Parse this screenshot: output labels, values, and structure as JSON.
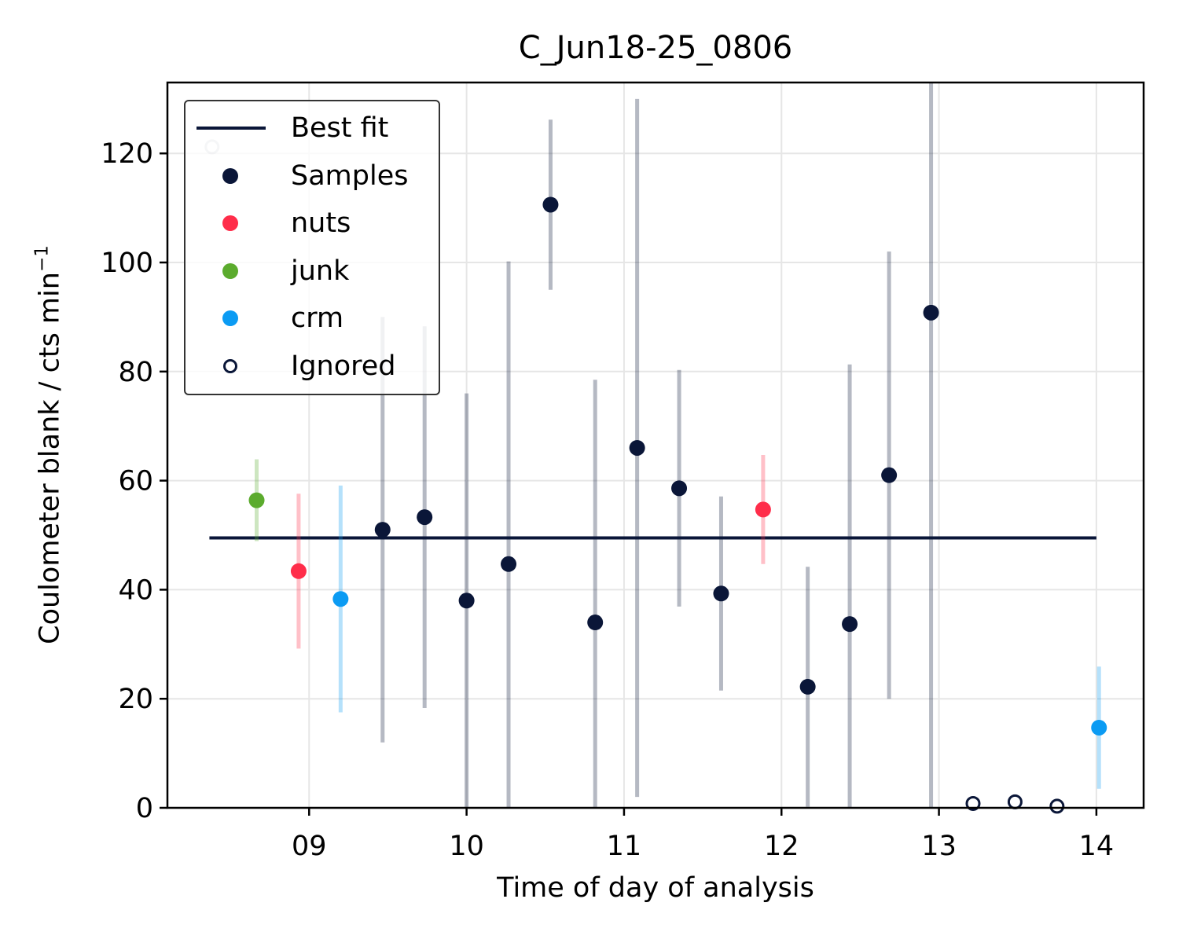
{
  "chart_data": {
    "type": "scatter",
    "title": "C_Jun18-25_0806",
    "xlabel": "Time of day of analysis",
    "ylabel": "Coulometer blank / cts min",
    "ylabel_sup": "−1",
    "xlim": [
      "08:06",
      "14:18"
    ],
    "ylim": [
      0,
      133
    ],
    "xticks": [
      "09",
      "10",
      "11",
      "12",
      "13",
      "14"
    ],
    "yticks": [
      0,
      20,
      40,
      60,
      80,
      100,
      120
    ],
    "grid": true,
    "legend_position": "top-left",
    "best_fit": {
      "x": [
        "08:22",
        "14:00"
      ],
      "y": [
        49.5,
        49.5
      ]
    },
    "series": [
      {
        "name": "Samples",
        "color": "#0a1638",
        "filled": true,
        "points": [
          {
            "x": "09:28",
            "y": 51,
            "err": 39
          },
          {
            "x": "09:44",
            "y": 53.3,
            "err": 35
          },
          {
            "x": "10:00",
            "y": 38,
            "err": 38
          },
          {
            "x": "10:16",
            "y": 44.7,
            "err": 55.5
          },
          {
            "x": "10:32",
            "y": 110.6,
            "err": 15.6
          },
          {
            "x": "10:49",
            "y": 34,
            "err": 44.5
          },
          {
            "x": "11:05",
            "y": 66,
            "err": 64
          },
          {
            "x": "11:21",
            "y": 58.6,
            "err": 21.7
          },
          {
            "x": "11:37",
            "y": 39.3,
            "err": 17.8
          },
          {
            "x": "12:10",
            "y": 22.2,
            "err": 22
          },
          {
            "x": "12:26",
            "y": 33.7,
            "err": 47.6
          },
          {
            "x": "12:41",
            "y": 61,
            "err": 41
          },
          {
            "x": "12:57",
            "y": 90.8,
            "err": 90.8
          }
        ]
      },
      {
        "name": "nuts",
        "color": "#ff2d4a",
        "filled": true,
        "points": [
          {
            "x": "08:56",
            "y": 43.4,
            "err": 14.2
          },
          {
            "x": "11:53",
            "y": 54.7,
            "err": 10
          }
        ]
      },
      {
        "name": "junk",
        "color": "#5bab2d",
        "filled": true,
        "points": [
          {
            "x": "08:40",
            "y": 56.4,
            "err": 7.5
          }
        ]
      },
      {
        "name": "crm",
        "color": "#0b9bf3",
        "filled": true,
        "points": [
          {
            "x": "09:12",
            "y": 38.3,
            "err": 20.8
          },
          {
            "x": "14:01",
            "y": 14.7,
            "err": 11.2
          }
        ]
      },
      {
        "name": "Ignored",
        "color": "#0a1638",
        "filled": false,
        "points": [
          {
            "x": "08:23",
            "y": 121.2,
            "faded": true
          },
          {
            "x": "13:13",
            "y": 0.8
          },
          {
            "x": "13:29",
            "y": 1.1
          },
          {
            "x": "13:45",
            "y": 0.3
          }
        ]
      }
    ]
  },
  "legend": {
    "entries": [
      {
        "label": "Best fit",
        "kind": "line",
        "color": "#0a1638"
      },
      {
        "label": "Samples",
        "kind": "dot",
        "color": "#0a1638"
      },
      {
        "label": "nuts",
        "kind": "dot",
        "color": "#ff2d4a"
      },
      {
        "label": "junk",
        "kind": "dot",
        "color": "#5bab2d"
      },
      {
        "label": "crm",
        "kind": "dot",
        "color": "#0b9bf3"
      },
      {
        "label": "Ignored",
        "kind": "hollow",
        "color": "#0a1638"
      }
    ]
  }
}
